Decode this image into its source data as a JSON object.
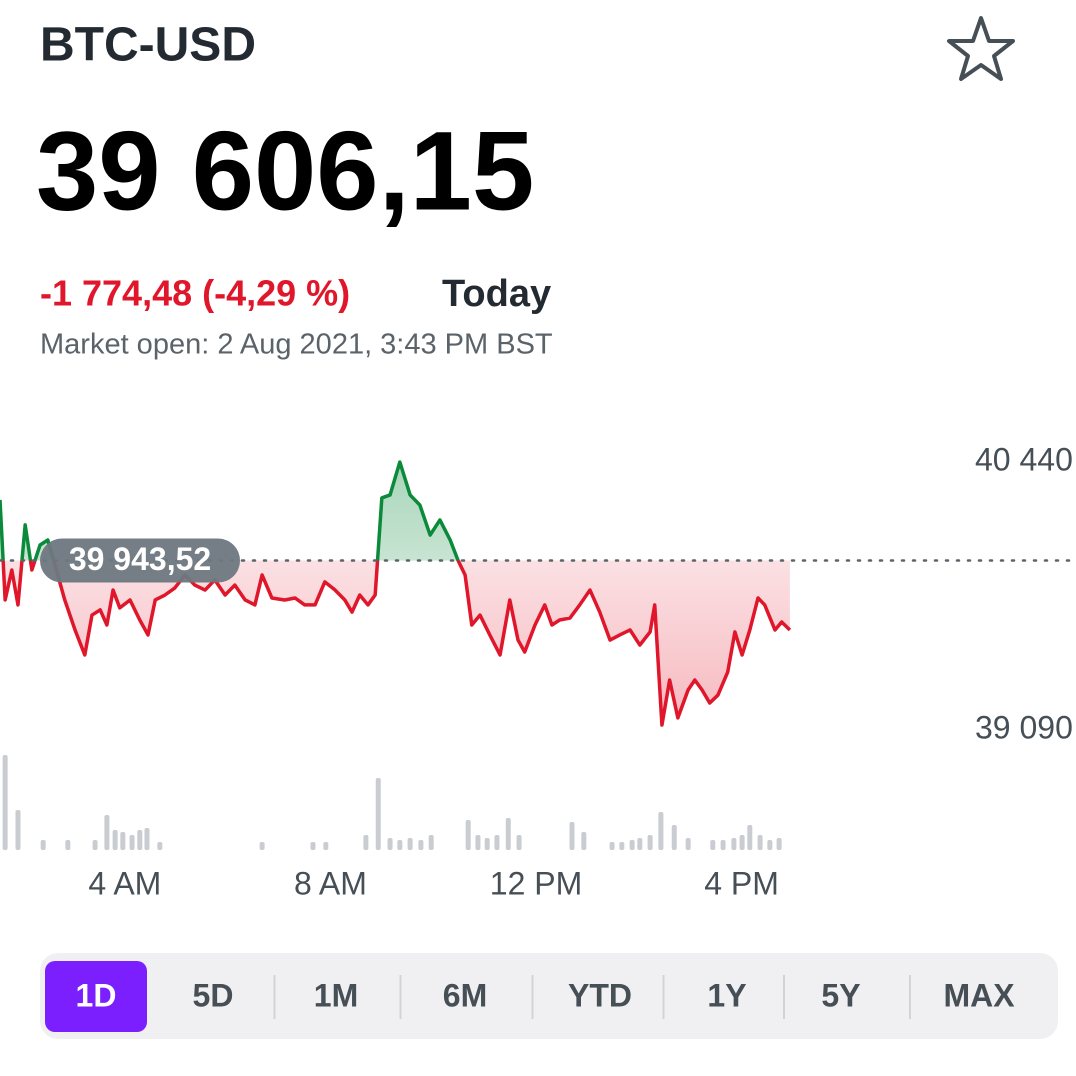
{
  "header": {
    "symbol": "BTC-USD",
    "price": "39 606,15",
    "change": "-1 774,48 (-4,29 %)",
    "period": "Today",
    "status": "Market open: 2 Aug 2021, 3:43 PM BST"
  },
  "chart_data": {
    "type": "line",
    "x": [
      1.57,
      1.67,
      1.8,
      1.92,
      2.06,
      2.19,
      2.35,
      2.5,
      2.64,
      2.83,
      3.03,
      3.22,
      3.36,
      3.52,
      3.65,
      3.77,
      3.9,
      4.1,
      4.29,
      4.45,
      4.59,
      4.78,
      4.97,
      5.17,
      5.36,
      5.56,
      5.75,
      5.95,
      6.14,
      6.34,
      6.53,
      6.67,
      6.86,
      7.11,
      7.31,
      7.5,
      7.7,
      7.89,
      8.09,
      8.28,
      8.42,
      8.57,
      8.73,
      8.87,
      9.0,
      9.16,
      9.35,
      9.55,
      9.74,
      9.94,
      10.13,
      10.33,
      10.48,
      10.62,
      10.75,
      10.91,
      11.1,
      11.3,
      11.49,
      11.65,
      11.78,
      11.98,
      12.17,
      12.31,
      12.46,
      12.66,
      12.85,
      13.05,
      13.24,
      13.44,
      13.63,
      13.83,
      14.02,
      14.22,
      14.31,
      14.45,
      14.6,
      14.76,
      14.96,
      15.09,
      15.23,
      15.38,
      15.54,
      15.73,
      15.87,
      16.01,
      16.16,
      16.32,
      16.45,
      16.65,
      16.78,
      16.94
    ],
    "values": [
      40249,
      39745,
      39896,
      39720,
      40123,
      39896,
      40022,
      40047,
      39921,
      39745,
      39594,
      39468,
      39669,
      39695,
      39619,
      39795,
      39705,
      39745,
      39644,
      39569,
      39745,
      39770,
      39805,
      39871,
      39820,
      39795,
      39846,
      39770,
      39820,
      39745,
      39720,
      39871,
      39755,
      39745,
      39755,
      39720,
      39720,
      39836,
      39795,
      39745,
      39684,
      39770,
      39720,
      39770,
      40259,
      40274,
      40440,
      40274,
      40223,
      40072,
      40148,
      40047,
      39946,
      39871,
      39619,
      39669,
      39569,
      39468,
      39745,
      39543,
      39483,
      39619,
      39720,
      39619,
      39644,
      39654,
      39720,
      39795,
      39684,
      39543,
      39569,
      39594,
      39518,
      39584,
      39720,
      39115,
      39342,
      39151,
      39292,
      39342,
      39292,
      39226,
      39266,
      39382,
      39584,
      39468,
      39594,
      39755,
      39720,
      39594,
      39634,
      39594
    ],
    "reference": 39943.52,
    "reference_label": "39 943,52",
    "up_color": "#0b8a3b",
    "down_color": "#e0162b",
    "xlim": [
      1.57,
      20.25
    ],
    "xticks": [
      {
        "value": 4,
        "label": "4 AM"
      },
      {
        "value": 8,
        "label": "8 AM"
      },
      {
        "value": 12,
        "label": "12 PM"
      },
      {
        "value": 16,
        "label": "4 PM"
      }
    ],
    "ylim": [
      39090,
      40440
    ],
    "yticks": [
      {
        "value": 40440,
        "label": "40 440"
      },
      {
        "value": 39090,
        "label": "39 090"
      }
    ],
    "volume": {
      "color": "#c9ccd1",
      "ylim": [
        0,
        100
      ],
      "x": [
        1.67,
        1.92,
        2.41,
        2.89,
        3.42,
        3.65,
        3.81,
        3.96,
        4.14,
        4.29,
        4.43,
        4.68,
        6.67,
        7.66,
        7.91,
        8.69,
        8.93,
        9.16,
        9.35,
        9.55,
        9.76,
        9.96,
        10.68,
        10.87,
        11.05,
        11.24,
        11.46,
        11.67,
        12.7,
        12.93,
        13.48,
        13.67,
        13.87,
        14.02,
        14.22,
        14.43,
        14.69,
        14.96,
        15.44,
        15.64,
        15.85,
        16.01,
        16.16,
        16.36,
        16.55,
        16.73
      ],
      "values": [
        95,
        40,
        10,
        10,
        10,
        35,
        20,
        18,
        15,
        20,
        22,
        8,
        8,
        8,
        8,
        15,
        72,
        12,
        10,
        12,
        10,
        15,
        30,
        15,
        12,
        15,
        32,
        15,
        28,
        18,
        8,
        8,
        10,
        12,
        15,
        38,
        25,
        12,
        10,
        10,
        12,
        15,
        25,
        15,
        10,
        12
      ]
    }
  },
  "range_tabs": {
    "items": [
      "1D",
      "5D",
      "1M",
      "6M",
      "YTD",
      "1Y",
      "5Y",
      "MAX"
    ],
    "selected": 0,
    "selected_color": "#7b1fff"
  }
}
